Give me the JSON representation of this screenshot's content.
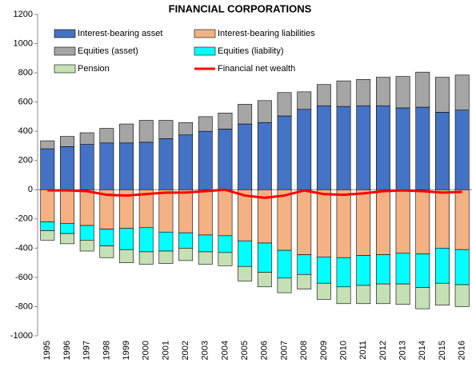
{
  "chart_data": {
    "type": "bar",
    "stacked": true,
    "title": "FINANCIAL CORPORATIONS",
    "legend": "top",
    "categories": [
      "1995",
      "1996",
      "1997",
      "1998",
      "1999",
      "2000",
      "2001",
      "2002",
      "2003",
      "2004",
      "2005",
      "2006",
      "2007",
      "2008",
      "2009",
      "2010",
      "2011",
      "2012",
      "2013",
      "2014",
      "2015",
      "2016"
    ],
    "ylim": [
      -1000,
      1200
    ],
    "yticks": [
      -1000,
      -800,
      -600,
      -400,
      -200,
      0,
      200,
      400,
      600,
      800,
      1000,
      1200
    ],
    "series": [
      {
        "name": "Interest-bearing asset",
        "color": "#4472c4",
        "values": [
          280,
          295,
          310,
          320,
          320,
          325,
          350,
          375,
          400,
          415,
          450,
          460,
          505,
          550,
          575,
          570,
          575,
          575,
          560,
          565,
          530,
          545
        ]
      },
      {
        "name": "Interest-bearing liabilities",
        "color": "#f4b183",
        "values": [
          -220,
          -230,
          -245,
          -270,
          -265,
          -260,
          -290,
          -295,
          -310,
          -315,
          -350,
          -365,
          -415,
          -445,
          -460,
          -465,
          -450,
          -445,
          -435,
          -440,
          -400,
          -410
        ]
      },
      {
        "name": "Equities (asset)",
        "color": "#a5a5a5",
        "values": [
          55,
          70,
          80,
          100,
          130,
          150,
          125,
          85,
          100,
          110,
          135,
          150,
          160,
          120,
          145,
          175,
          180,
          195,
          215,
          240,
          240,
          240
        ]
      },
      {
        "name": "Equities (liability)",
        "color": "#00ffff",
        "values": [
          -60,
          -70,
          -100,
          -115,
          -145,
          -165,
          -130,
          -105,
          -115,
          -115,
          -175,
          -200,
          -190,
          -135,
          -180,
          -200,
          -205,
          -200,
          -210,
          -230,
          -240,
          -240
        ]
      },
      {
        "name": "Pension",
        "color": "#c5e0b4",
        "values": [
          -65,
          -70,
          -75,
          -80,
          -90,
          -85,
          -85,
          -85,
          -85,
          -90,
          -100,
          -100,
          -100,
          -100,
          -110,
          -115,
          -125,
          -135,
          -140,
          -145,
          -150,
          -150
        ]
      },
      {
        "name": "Financial net wealth",
        "color": "#ff0000",
        "type": "line",
        "values": [
          -5,
          -5,
          -10,
          -35,
          -40,
          -30,
          -20,
          -20,
          -10,
          0,
          -40,
          -55,
          -40,
          -5,
          -30,
          -35,
          -25,
          -10,
          -5,
          -10,
          -20,
          -15
        ]
      }
    ]
  }
}
